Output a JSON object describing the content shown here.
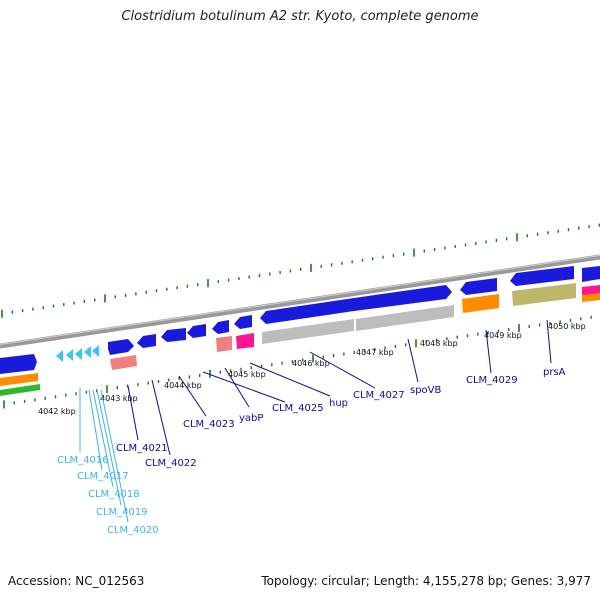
{
  "title": "Clostridium botulinum A2 str. Kyoto, complete genome",
  "footer": {
    "accession": "Accession: NC_012563",
    "topology": "Topology: circular; Length: 4,155,278 bp; Genes: 3,977"
  },
  "colors": {
    "forward_gene": "#1a1adc",
    "reverse_gene": "#1a1adc",
    "trna": "#3cc4f0",
    "backbone": "#888888",
    "gray_feature": "#bdbdbd",
    "orange_feature": "#ff8c00",
    "khaki_feature": "#bdb76b",
    "pink_feature": "#ff1493",
    "salmon_feature": "#f08080",
    "green_feature": "#2eb82e",
    "tick": "#1a7a1a",
    "label_dark": "#0d0d8c",
    "label_light": "#3cb4e6"
  },
  "kbp_ticks": [
    {
      "label": "4042 kbp"
    },
    {
      "label": "4043 kbp"
    },
    {
      "label": "4044 kbp"
    },
    {
      "label": "4045 kbp"
    },
    {
      "label": "4046 kbp"
    },
    {
      "label": "4047 kbp"
    },
    {
      "label": "4048 kbp"
    },
    {
      "label": "4049 kbp"
    },
    {
      "label": "4050 kbp"
    }
  ],
  "gene_labels": [
    {
      "text": "CLM_4016"
    },
    {
      "text": "CLM_4017"
    },
    {
      "text": "CLM_4018"
    },
    {
      "text": "CLM_4019"
    },
    {
      "text": "CLM_4020"
    },
    {
      "text": "CLM_4021"
    },
    {
      "text": "CLM_4022"
    },
    {
      "text": "CLM_4023"
    },
    {
      "text": "yabP"
    },
    {
      "text": "CLM_4025"
    },
    {
      "text": "hup"
    },
    {
      "text": "CLM_4027"
    },
    {
      "text": "spoVB"
    },
    {
      "text": "CLM_4029"
    },
    {
      "text": "prsA"
    }
  ]
}
